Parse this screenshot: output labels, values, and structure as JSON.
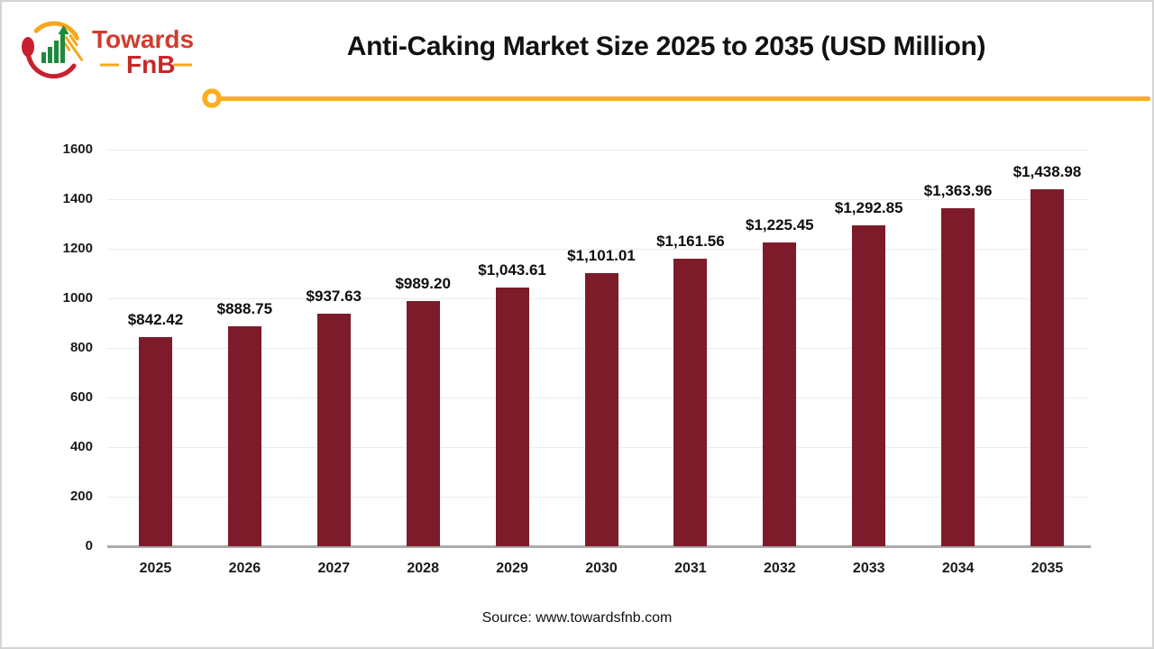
{
  "header": {
    "logo": {
      "line1": "Towards",
      "line2": "FnB"
    },
    "title": "Anti-Caking Market Size 2025 to 2035 (USD Million)",
    "accent_color": "#FBAF1E"
  },
  "chart_data": {
    "type": "bar",
    "title": "Anti-Caking Market Size 2025 to 2035 (USD Million)",
    "categories": [
      "2025",
      "2026",
      "2027",
      "2028",
      "2029",
      "2030",
      "2031",
      "2032",
      "2033",
      "2034",
      "2035"
    ],
    "values": [
      842.42,
      888.75,
      937.63,
      989.2,
      1043.61,
      1101.01,
      1161.56,
      1225.45,
      1292.85,
      1363.96,
      1438.98
    ],
    "value_labels": [
      "$842.42",
      "$888.75",
      "$937.63",
      "$989.20",
      "$1,043.61",
      "$1,101.01",
      "$1,161.56",
      "$1,225.45",
      "$1,292.85",
      "$1,363.96",
      "$1,438.98"
    ],
    "y_ticks": [
      0,
      200,
      400,
      600,
      800,
      1000,
      1200,
      1400,
      1600
    ],
    "ylim": [
      0,
      1600
    ],
    "xlabel": "",
    "ylabel": "",
    "grid": true,
    "legend": false,
    "bar_color": "#7D1B2A",
    "gridline_color": "#ECECEC",
    "axis_color": "#ABABAB"
  },
  "footer": {
    "source": "Source: www.towardsfnb.com"
  }
}
